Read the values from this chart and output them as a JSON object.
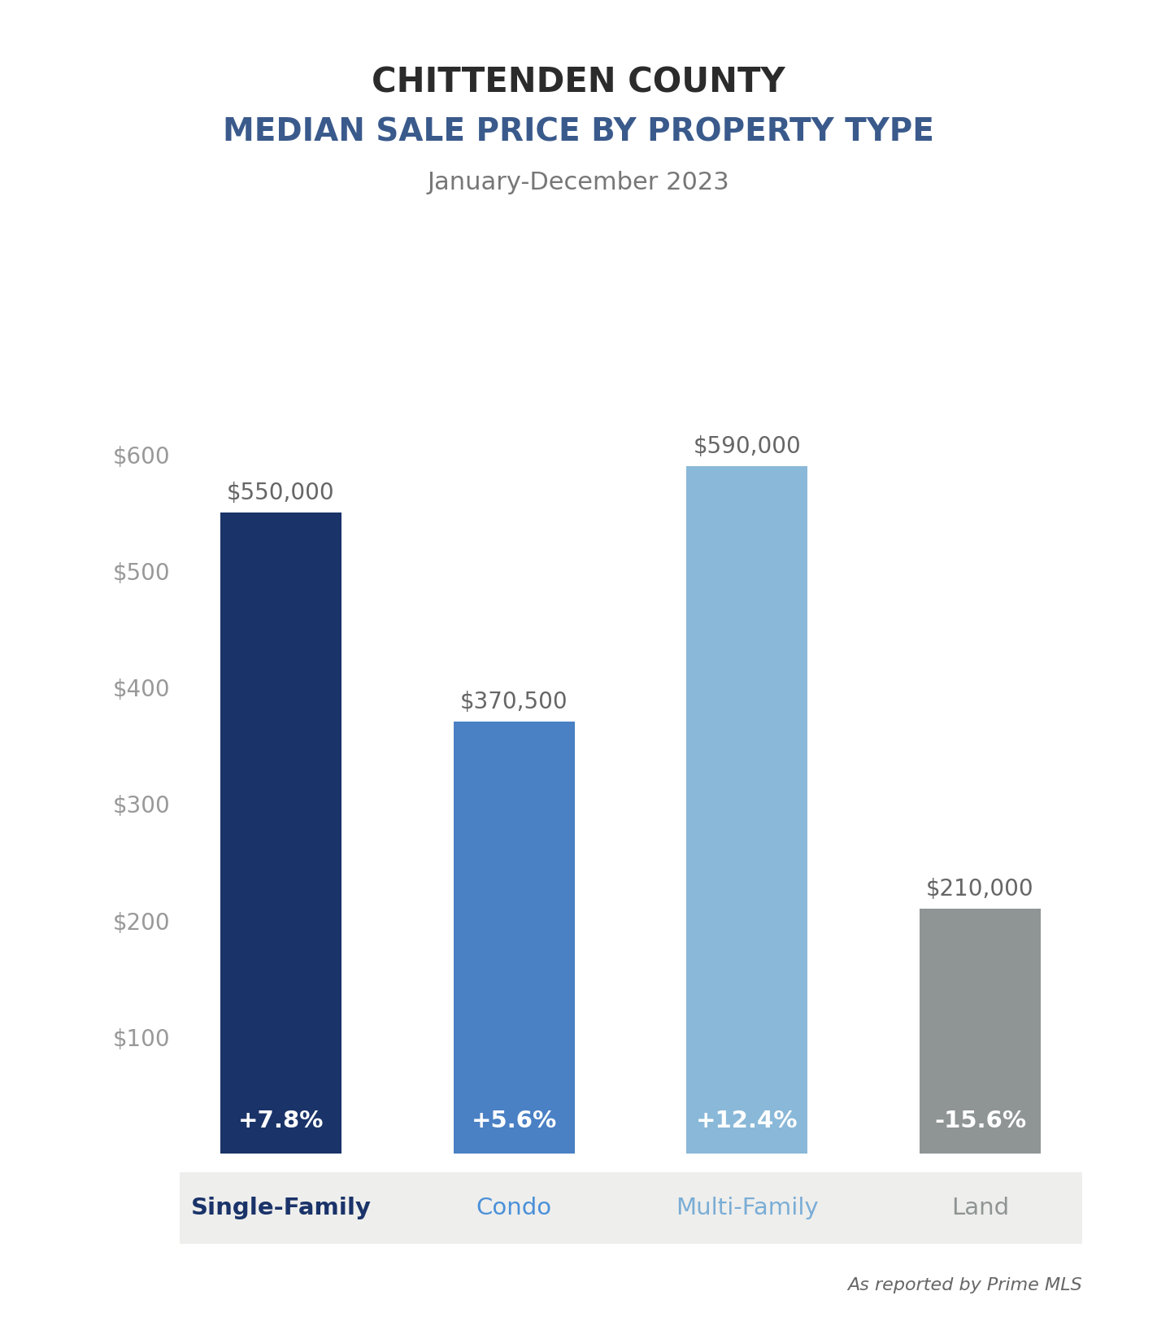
{
  "title_line1": "CHITTENDEN COUNTY",
  "title_line2": "MEDIAN SALE PRICE BY PROPERTY TYPE",
  "subtitle": "January-December 2023",
  "categories": [
    "Single-Family",
    "Condo",
    "Multi-Family",
    "Land"
  ],
  "values": [
    550000,
    370500,
    590000,
    210000
  ],
  "bar_colors": [
    "#1a3369",
    "#4a80c4",
    "#8ab8d8",
    "#8f9494"
  ],
  "xlabel_colors": [
    "#1a3369",
    "#4a90d9",
    "#7aadd6",
    "#8f9494"
  ],
  "pct_labels": [
    "+7.8%",
    "+5.6%",
    "+12.4%",
    "-15.6%"
  ],
  "value_labels": [
    "$550,000",
    "$370,500",
    "$590,000",
    "$210,000"
  ],
  "ylim": [
    0,
    660000
  ],
  "yticks": [
    0,
    100000,
    200000,
    300000,
    400000,
    500000,
    600000
  ],
  "background_color": "#ffffff",
  "xaxis_bg_color": "#eeeeec",
  "title_color": "#2b2b2b",
  "subtitle_color": "#777777",
  "tick_label_color": "#999999",
  "value_label_color": "#666666",
  "pct_label_color": "#ffffff",
  "source_text": "As reported by Prime MLS",
  "source_color": "#666666",
  "title1_fontsize": 30,
  "title2_fontsize": 28,
  "subtitle_fontsize": 22,
  "bar_width": 0.52,
  "pct_fontsize": 21,
  "value_fontsize": 20,
  "xlabel_fontsize": 21,
  "ytick_fontsize": 20
}
